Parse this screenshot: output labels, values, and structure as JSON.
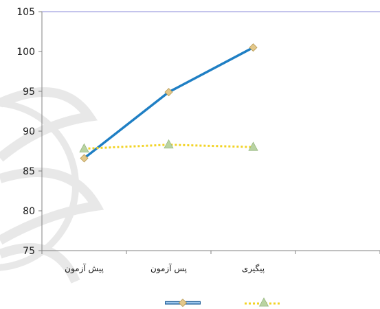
{
  "chart_data": {
    "type": "line",
    "categories": [
      "پیش آزمون",
      "پس آزمون",
      "پیگیری"
    ],
    "ylim": [
      75,
      105
    ],
    "yticks": [
      75,
      80,
      85,
      90,
      95,
      100,
      105
    ],
    "grid": false,
    "legend_position": "bottom",
    "series": [
      {
        "values": [
          86.6,
          94.9,
          100.5
        ],
        "color": "#1f7fc4",
        "marker": "diamond",
        "line_style": "solid"
      },
      {
        "values": [
          87.8,
          88.3,
          88.0
        ],
        "color": "#f2d325",
        "marker": "triangle",
        "line_style": "dotted"
      }
    ]
  }
}
